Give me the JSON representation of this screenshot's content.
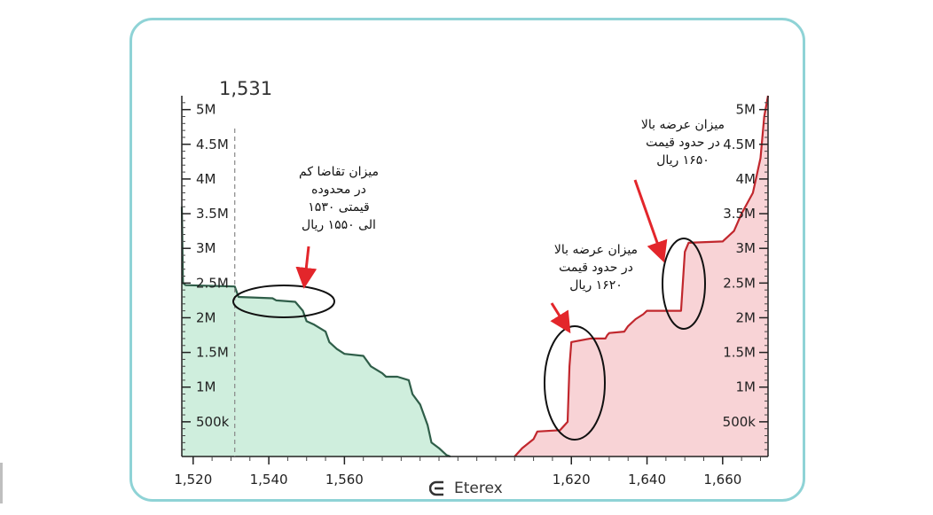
{
  "header_price": "1,531",
  "brand": {
    "name": "Eterex",
    "icon": "eterex-logo-icon"
  },
  "colors": {
    "bid_fill": "#cfeedd",
    "bid_line": "#2f5e49",
    "ask_fill": "#f8d3d6",
    "ask_line": "#c1272d",
    "arrow": "#e3262b",
    "frame": "#8fd3d6"
  },
  "chart_data": {
    "type": "area",
    "title": "",
    "xlabel": "",
    "ylabel": "",
    "xlim": [
      1517,
      1672
    ],
    "ylim": [
      0,
      5.2
    ],
    "x_ticks": [
      "1,520",
      "1,540",
      "1,560",
      "1,620",
      "1,640",
      "1,660"
    ],
    "x_tick_values": [
      1520,
      1540,
      1560,
      1620,
      1640,
      1660
    ],
    "y_ticks_left": [
      "5M",
      "4.5M",
      "4M",
      "3.5M",
      "3M",
      "2.5M",
      "2M",
      "1.5M",
      "1M",
      "500k"
    ],
    "y_ticks_right": [
      "5M",
      "4.5M",
      "4M",
      "3.5M",
      "3M",
      "2.5M",
      "2M",
      "1.5M",
      "1M",
      "500k"
    ],
    "y_tick_values": [
      5,
      4.5,
      4,
      3.5,
      3,
      2.5,
      2,
      1.5,
      1,
      0.5
    ],
    "current_price_marker": 1531,
    "series": [
      {
        "name": "",
        "side": "bid",
        "points": [
          [
            1517,
            3.6
          ],
          [
            1517.3,
            2.5
          ],
          [
            1518,
            2.47
          ],
          [
            1531,
            2.45
          ],
          [
            1532,
            2.3
          ],
          [
            1541,
            2.28
          ],
          [
            1542,
            2.25
          ],
          [
            1547,
            2.23
          ],
          [
            1549,
            2.1
          ],
          [
            1550,
            1.95
          ],
          [
            1552,
            1.9
          ],
          [
            1555,
            1.8
          ],
          [
            1556,
            1.65
          ],
          [
            1558,
            1.55
          ],
          [
            1560,
            1.48
          ],
          [
            1565,
            1.45
          ],
          [
            1567,
            1.3
          ],
          [
            1570,
            1.2
          ],
          [
            1571,
            1.15
          ],
          [
            1574,
            1.15
          ],
          [
            1577,
            1.1
          ],
          [
            1578,
            0.9
          ],
          [
            1580,
            0.75
          ],
          [
            1582,
            0.45
          ],
          [
            1583,
            0.2
          ],
          [
            1585,
            0.12
          ],
          [
            1587,
            0.02
          ],
          [
            1588,
            0
          ]
        ]
      },
      {
        "name": "",
        "side": "ask",
        "points": [
          [
            1605,
            0
          ],
          [
            1607,
            0.12
          ],
          [
            1610,
            0.25
          ],
          [
            1611,
            0.36
          ],
          [
            1617,
            0.38
          ],
          [
            1619,
            0.5
          ],
          [
            1619.5,
            1.3
          ],
          [
            1620,
            1.65
          ],
          [
            1625,
            1.7
          ],
          [
            1629,
            1.7
          ],
          [
            1629.5,
            1.75
          ],
          [
            1630,
            1.78
          ],
          [
            1634,
            1.8
          ],
          [
            1635,
            1.88
          ],
          [
            1637,
            1.98
          ],
          [
            1639,
            2.05
          ],
          [
            1640,
            2.1
          ],
          [
            1649,
            2.1
          ],
          [
            1650,
            2.95
          ],
          [
            1651,
            3.08
          ],
          [
            1660,
            3.1
          ],
          [
            1663,
            3.25
          ],
          [
            1665,
            3.5
          ],
          [
            1668,
            3.8
          ],
          [
            1669,
            4.05
          ],
          [
            1670,
            4.3
          ],
          [
            1671,
            4.9
          ],
          [
            1672,
            5.2
          ]
        ]
      }
    ],
    "annotations": [
      {
        "target": "bid-range-1530-1550",
        "text_lines": [
          "میزان تقاضا کم",
          "در محدوده",
          "قیمتی ۱۵۳۰",
          "الی ۱۵۵۰ ریال"
        ]
      },
      {
        "target": "ask-step-1620",
        "text_lines": [
          "میزان عرضه بالا",
          "در حدود قیمت",
          "۱۶۲۰ ریال"
        ]
      },
      {
        "target": "ask-step-1650",
        "text_lines": [
          "میزان عرضه بالا",
          "در حدود قیمت",
          "۱۶۵۰ ریال"
        ]
      }
    ]
  }
}
